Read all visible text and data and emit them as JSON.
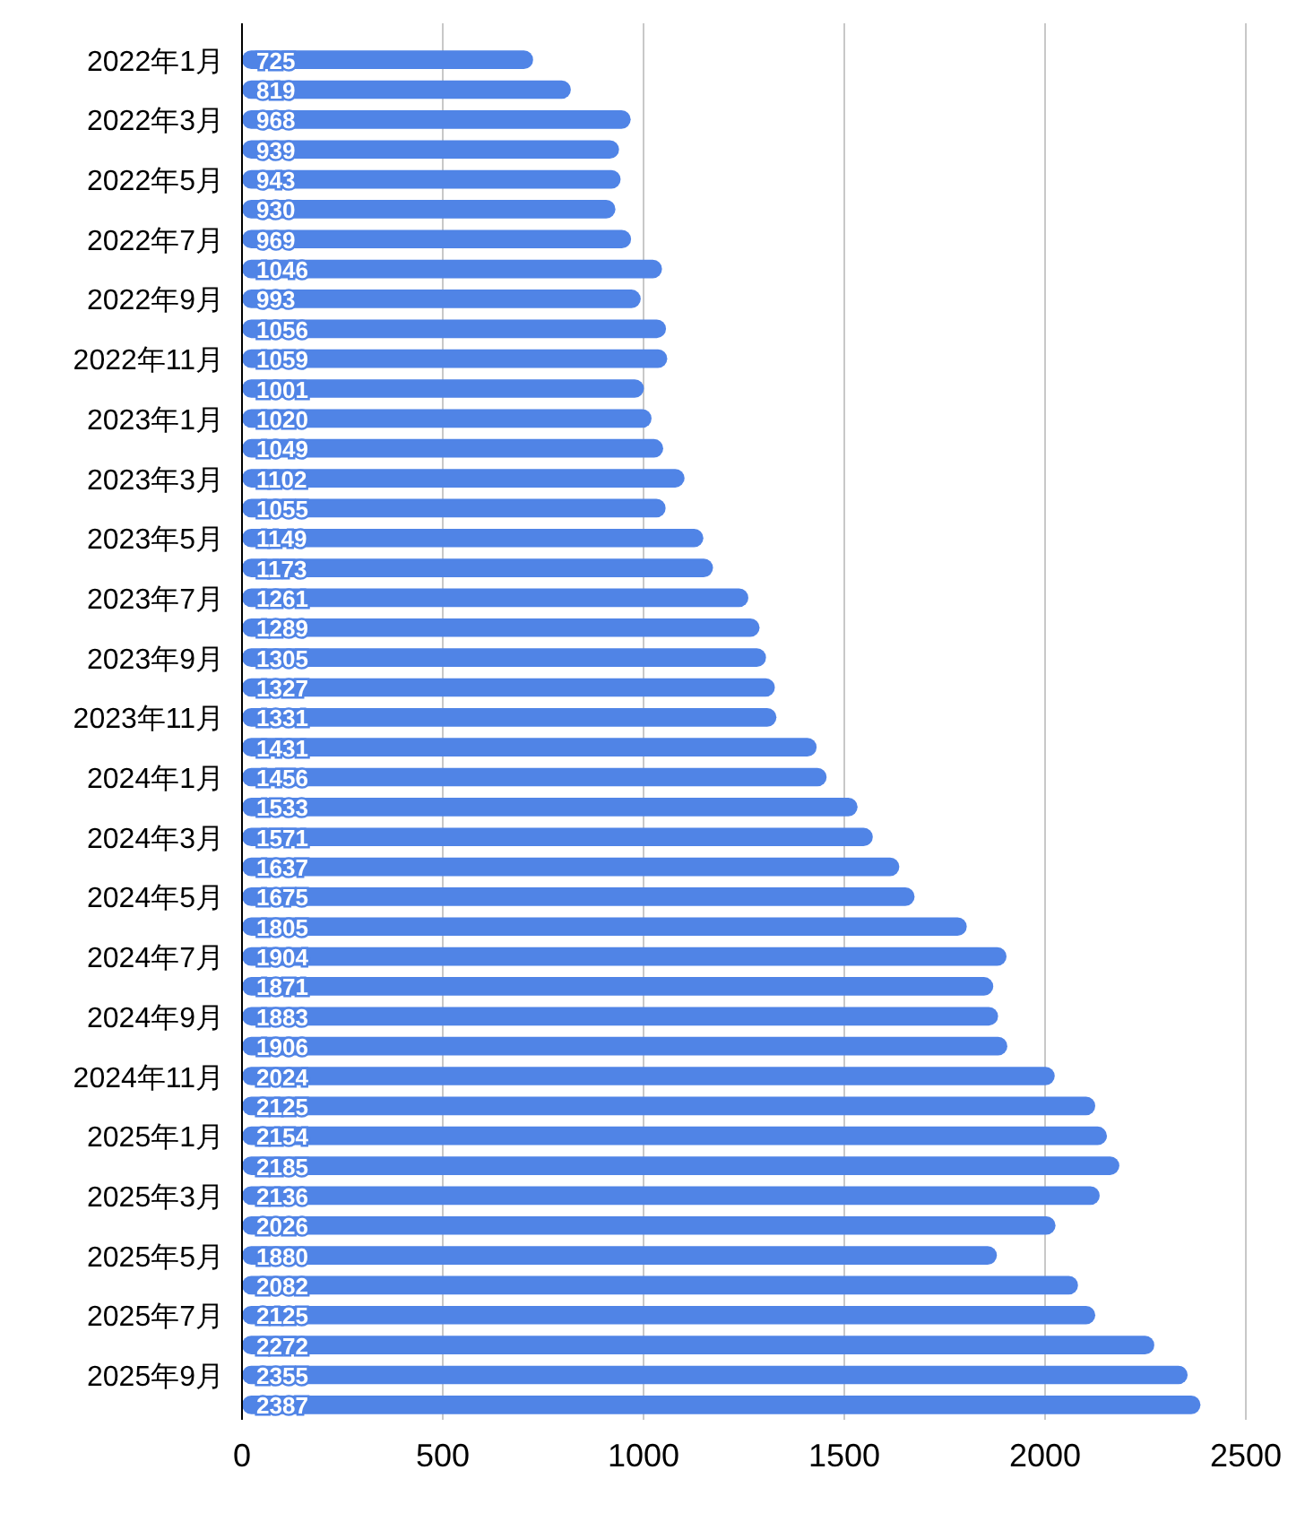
{
  "chart_data": {
    "type": "bar",
    "orientation": "horizontal",
    "categories": [
      "2022年1月",
      null,
      "2022年3月",
      null,
      "2022年5月",
      null,
      "2022年7月",
      null,
      "2022年9月",
      null,
      "2022年11月",
      null,
      "2023年1月",
      null,
      "2023年3月",
      null,
      "2023年5月",
      null,
      "2023年7月",
      null,
      "2023年9月",
      null,
      "2023年11月",
      null,
      "2024年1月",
      null,
      "2024年3月",
      null,
      "2024年5月",
      null,
      "2024年7月",
      null,
      "2024年9月",
      null,
      "2024年11月",
      null,
      "2025年1月",
      null,
      "2025年3月",
      null,
      "2025年5月",
      null,
      "2025年7月",
      null,
      "2025年9月",
      null
    ],
    "values": [
      725,
      819,
      968,
      939,
      943,
      930,
      969,
      1046,
      993,
      1056,
      1059,
      1001,
      1020,
      1049,
      1102,
      1055,
      1149,
      1173,
      1261,
      1289,
      1305,
      1327,
      1331,
      1431,
      1456,
      1533,
      1571,
      1637,
      1675,
      1805,
      1904,
      1871,
      1883,
      1906,
      2024,
      2125,
      2154,
      2185,
      2136,
      2026,
      1880,
      2082,
      2125,
      2272,
      2355,
      2387
    ],
    "color": "#5084e6",
    "xlim": [
      0,
      2500
    ],
    "xticks": [
      0,
      500,
      1000,
      1500,
      2000,
      2500
    ],
    "grid": "x",
    "data_labels": true
  }
}
